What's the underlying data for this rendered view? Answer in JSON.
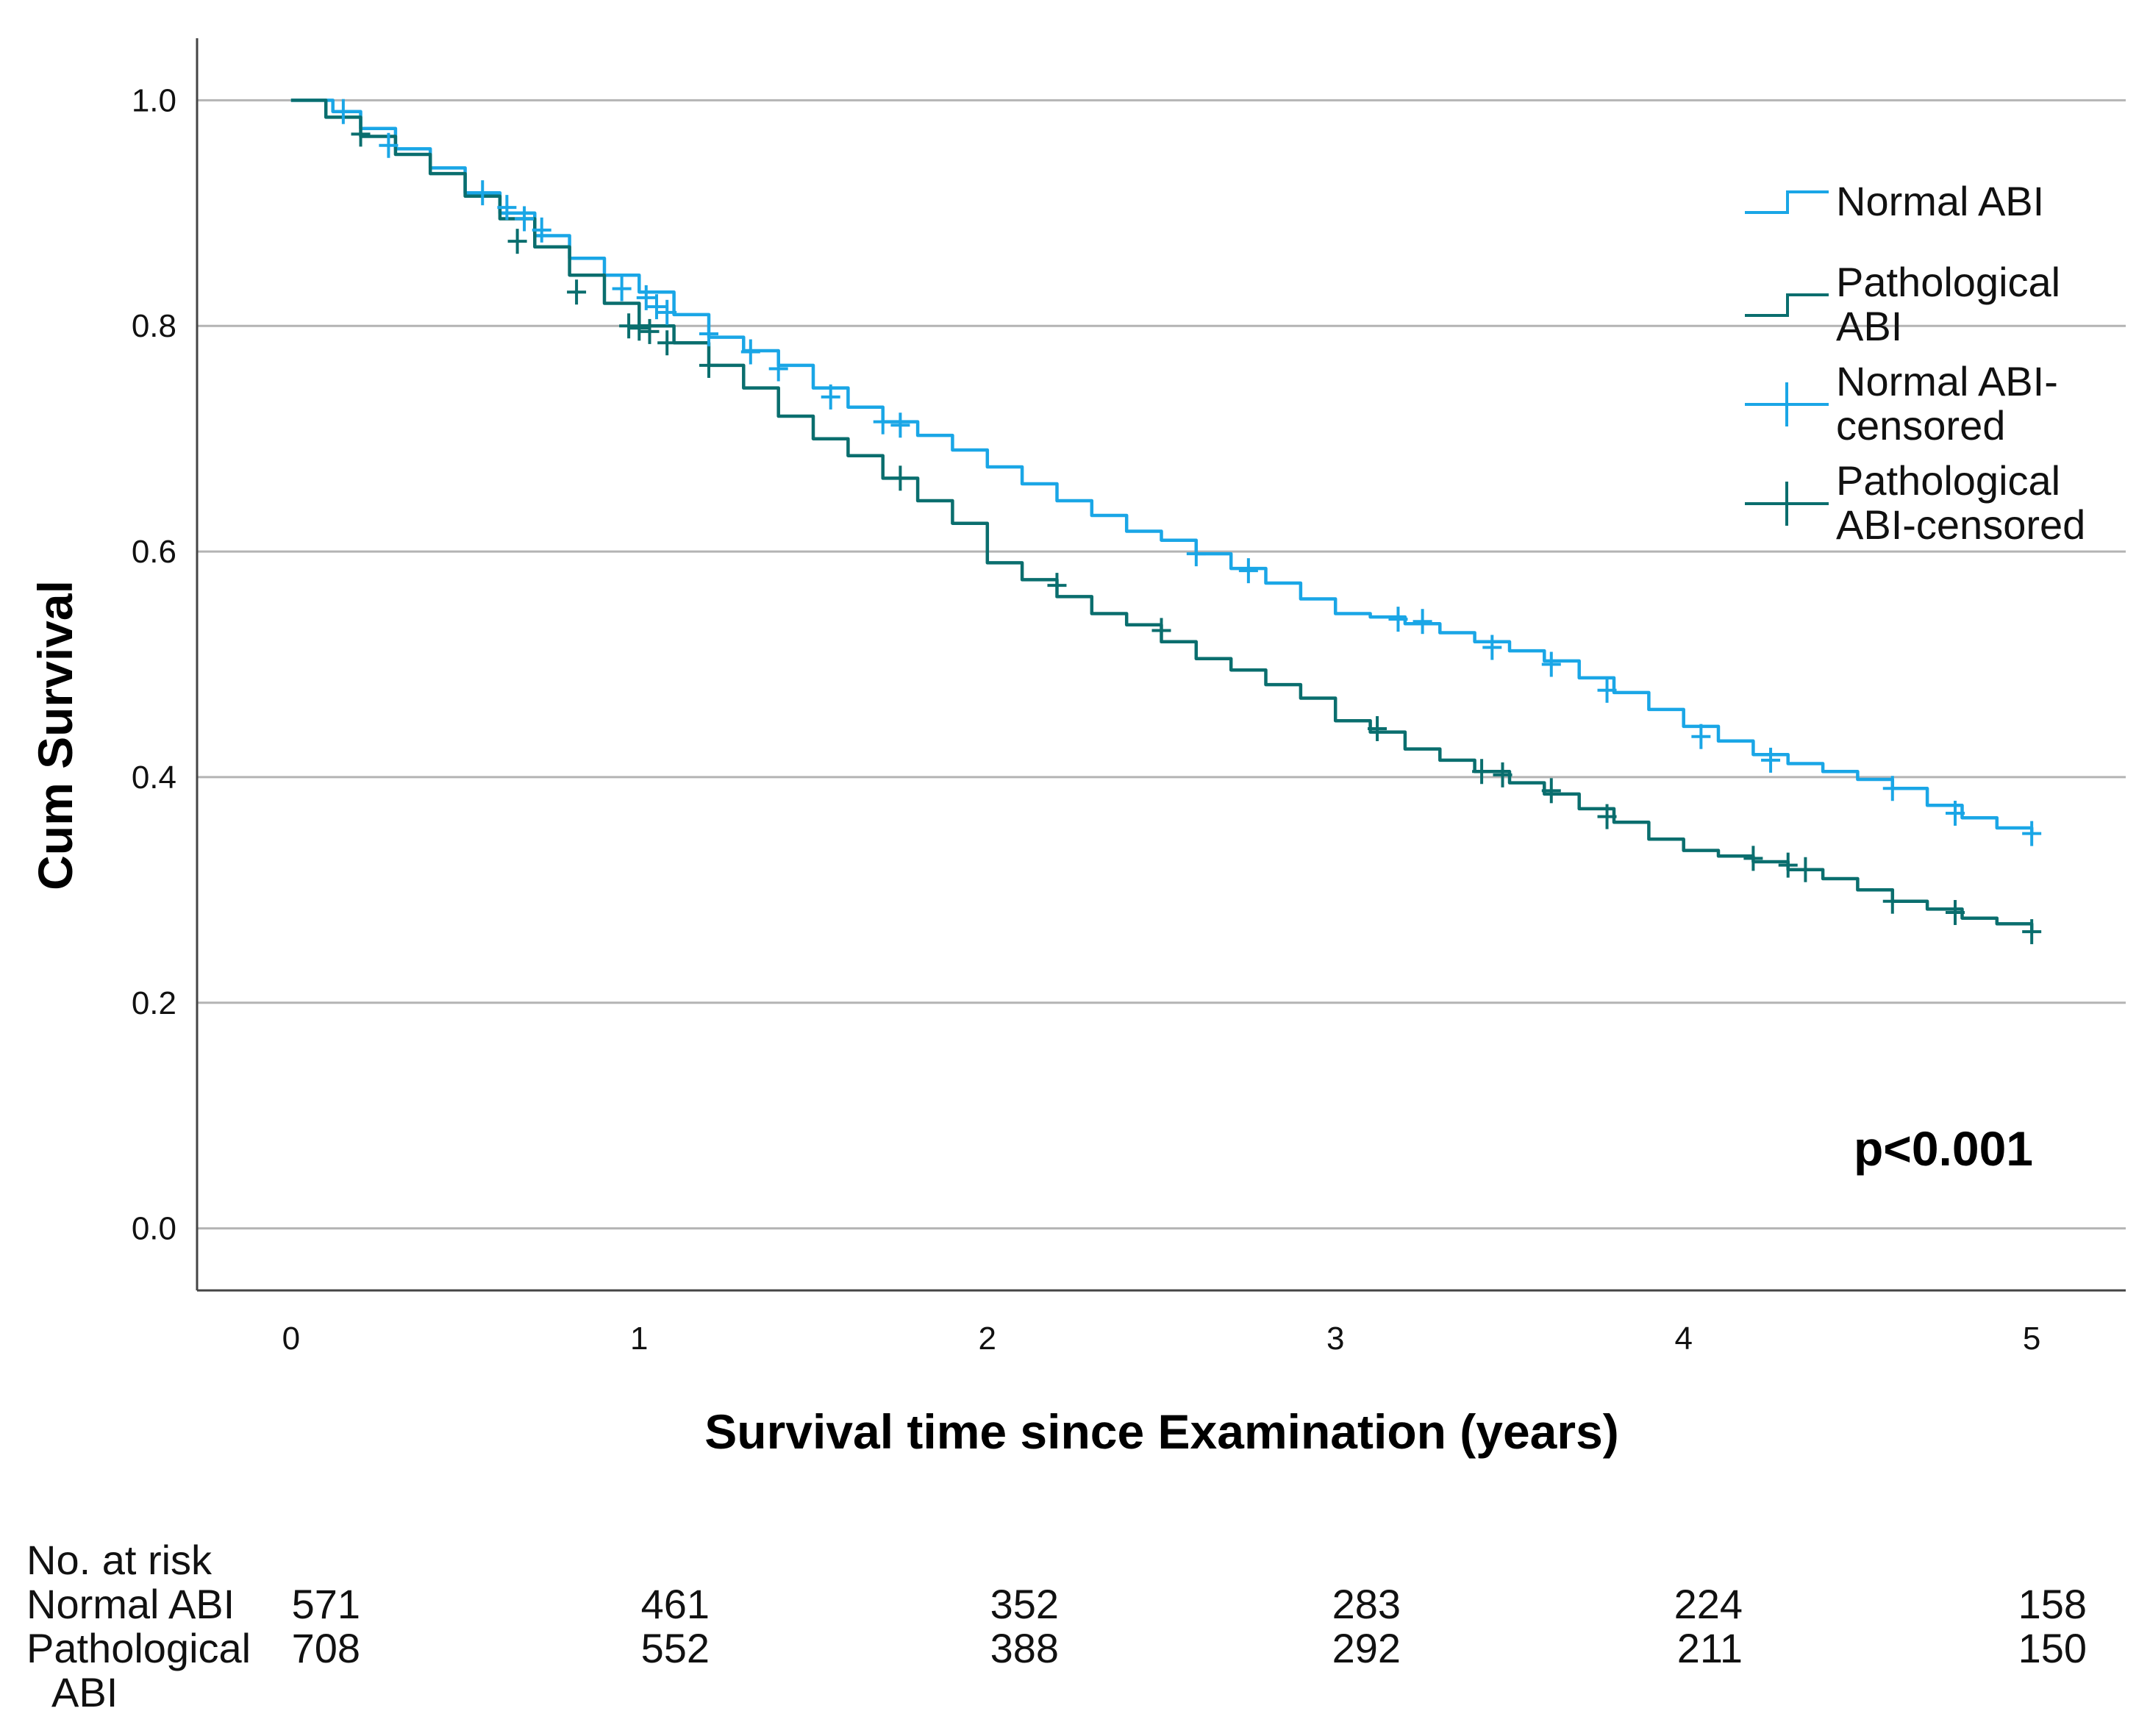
{
  "chart_data": {
    "type": "line",
    "subtype": "kaplan-meier",
    "xlabel": "Survival time since Examination (years)",
    "ylabel": "Cum Survival",
    "xlim": [
      -0.27,
      5.27
    ],
    "ylim": [
      -0.055,
      1.055
    ],
    "x_ticks": [
      "0",
      "1",
      "2",
      "3",
      "4",
      "5"
    ],
    "y_ticks": [
      "0.0",
      "0.2",
      "0.4",
      "0.6",
      "0.8",
      "1.0"
    ],
    "grid": "horizontal",
    "colors": {
      "normal": "#1aa6e6",
      "pathological": "#0a6e6e"
    },
    "series": [
      {
        "name": "Normal ABI",
        "x": [
          0,
          0.12,
          0.2,
          0.3,
          0.4,
          0.5,
          0.6,
          0.7,
          0.8,
          0.9,
          1.0,
          1.1,
          1.2,
          1.3,
          1.4,
          1.5,
          1.6,
          1.7,
          1.8,
          1.9,
          2.0,
          2.1,
          2.2,
          2.3,
          2.4,
          2.5,
          2.6,
          2.7,
          2.8,
          2.9,
          3.0,
          3.1,
          3.2,
          3.3,
          3.4,
          3.5,
          3.6,
          3.7,
          3.8,
          3.9,
          4.0,
          4.1,
          4.2,
          4.3,
          4.4,
          4.5,
          4.6,
          4.7,
          4.8,
          4.9,
          5.0
        ],
        "y": [
          1.0,
          0.99,
          0.975,
          0.957,
          0.94,
          0.918,
          0.9,
          0.88,
          0.86,
          0.845,
          0.83,
          0.81,
          0.79,
          0.778,
          0.765,
          0.745,
          0.728,
          0.715,
          0.703,
          0.69,
          0.675,
          0.66,
          0.645,
          0.632,
          0.618,
          0.61,
          0.598,
          0.585,
          0.572,
          0.558,
          0.545,
          0.542,
          0.536,
          0.528,
          0.52,
          0.512,
          0.503,
          0.488,
          0.475,
          0.46,
          0.445,
          0.432,
          0.42,
          0.412,
          0.405,
          0.398,
          0.39,
          0.375,
          0.364,
          0.355,
          0.35
        ],
        "censored_x": [
          0.15,
          0.28,
          0.55,
          0.62,
          0.67,
          0.72,
          0.95,
          1.02,
          1.05,
          1.08,
          1.2,
          1.32,
          1.4,
          1.55,
          1.7,
          1.75,
          2.6,
          2.75,
          3.18,
          3.25,
          3.45,
          3.62,
          3.78,
          4.05,
          4.25,
          4.6,
          4.78,
          5.0
        ],
        "censored_y": [
          0.99,
          0.96,
          0.918,
          0.905,
          0.895,
          0.885,
          0.833,
          0.825,
          0.817,
          0.812,
          0.793,
          0.777,
          0.762,
          0.737,
          0.715,
          0.712,
          0.598,
          0.583,
          0.54,
          0.538,
          0.515,
          0.5,
          0.477,
          0.436,
          0.415,
          0.39,
          0.368,
          0.35
        ]
      },
      {
        "name": "Pathological ABI",
        "x": [
          0,
          0.1,
          0.2,
          0.3,
          0.4,
          0.5,
          0.6,
          0.7,
          0.8,
          0.9,
          1.0,
          1.1,
          1.2,
          1.3,
          1.4,
          1.5,
          1.6,
          1.7,
          1.8,
          1.9,
          2.0,
          2.1,
          2.2,
          2.3,
          2.4,
          2.5,
          2.6,
          2.7,
          2.8,
          2.9,
          3.0,
          3.1,
          3.2,
          3.3,
          3.4,
          3.5,
          3.6,
          3.7,
          3.8,
          3.9,
          4.0,
          4.1,
          4.2,
          4.3,
          4.4,
          4.5,
          4.6,
          4.7,
          4.8,
          4.9,
          5.0
        ],
        "y": [
          1.0,
          0.985,
          0.968,
          0.952,
          0.935,
          0.915,
          0.895,
          0.87,
          0.845,
          0.82,
          0.8,
          0.785,
          0.765,
          0.745,
          0.72,
          0.7,
          0.685,
          0.665,
          0.645,
          0.625,
          0.59,
          0.575,
          0.56,
          0.545,
          0.535,
          0.52,
          0.505,
          0.495,
          0.482,
          0.47,
          0.45,
          0.44,
          0.425,
          0.415,
          0.405,
          0.395,
          0.385,
          0.372,
          0.36,
          0.345,
          0.335,
          0.33,
          0.325,
          0.318,
          0.31,
          0.3,
          0.29,
          0.283,
          0.275,
          0.27,
          0.263
        ],
        "censored_x": [
          0.2,
          0.65,
          0.82,
          0.97,
          1.0,
          1.03,
          1.08,
          1.2,
          1.75,
          2.2,
          2.5,
          3.12,
          3.42,
          3.48,
          3.62,
          3.78,
          4.2,
          4.3,
          4.35,
          4.6,
          4.78,
          5.0
        ],
        "censored_y": [
          0.97,
          0.875,
          0.83,
          0.8,
          0.798,
          0.795,
          0.785,
          0.765,
          0.665,
          0.57,
          0.53,
          0.443,
          0.405,
          0.402,
          0.388,
          0.365,
          0.328,
          0.322,
          0.318,
          0.29,
          0.28,
          0.263
        ]
      }
    ],
    "legend": {
      "position": "top-right",
      "entries": [
        {
          "line1": "Normal ABI",
          "line2": "",
          "marker": "step",
          "color_key": "normal"
        },
        {
          "line1": "Pathological",
          "line2": "ABI",
          "marker": "step",
          "color_key": "pathological"
        },
        {
          "line1": "Normal ABI-",
          "line2": "censored",
          "marker": "plus",
          "color_key": "normal"
        },
        {
          "line1": "Pathological",
          "line2": "ABI-censored",
          "marker": "plus",
          "color_key": "pathological"
        }
      ]
    },
    "annotation": "p<0.001"
  },
  "risk_table": {
    "title": "No. at risk",
    "rows": [
      {
        "label1": "Normal ABI",
        "label2": "",
        "values": [
          "571",
          "461",
          "352",
          "283",
          "224",
          "158"
        ]
      },
      {
        "label1": "Pathological",
        "label2": "ABI",
        "values": [
          "708",
          "552",
          "388",
          "292",
          "211",
          "150"
        ]
      }
    ]
  }
}
